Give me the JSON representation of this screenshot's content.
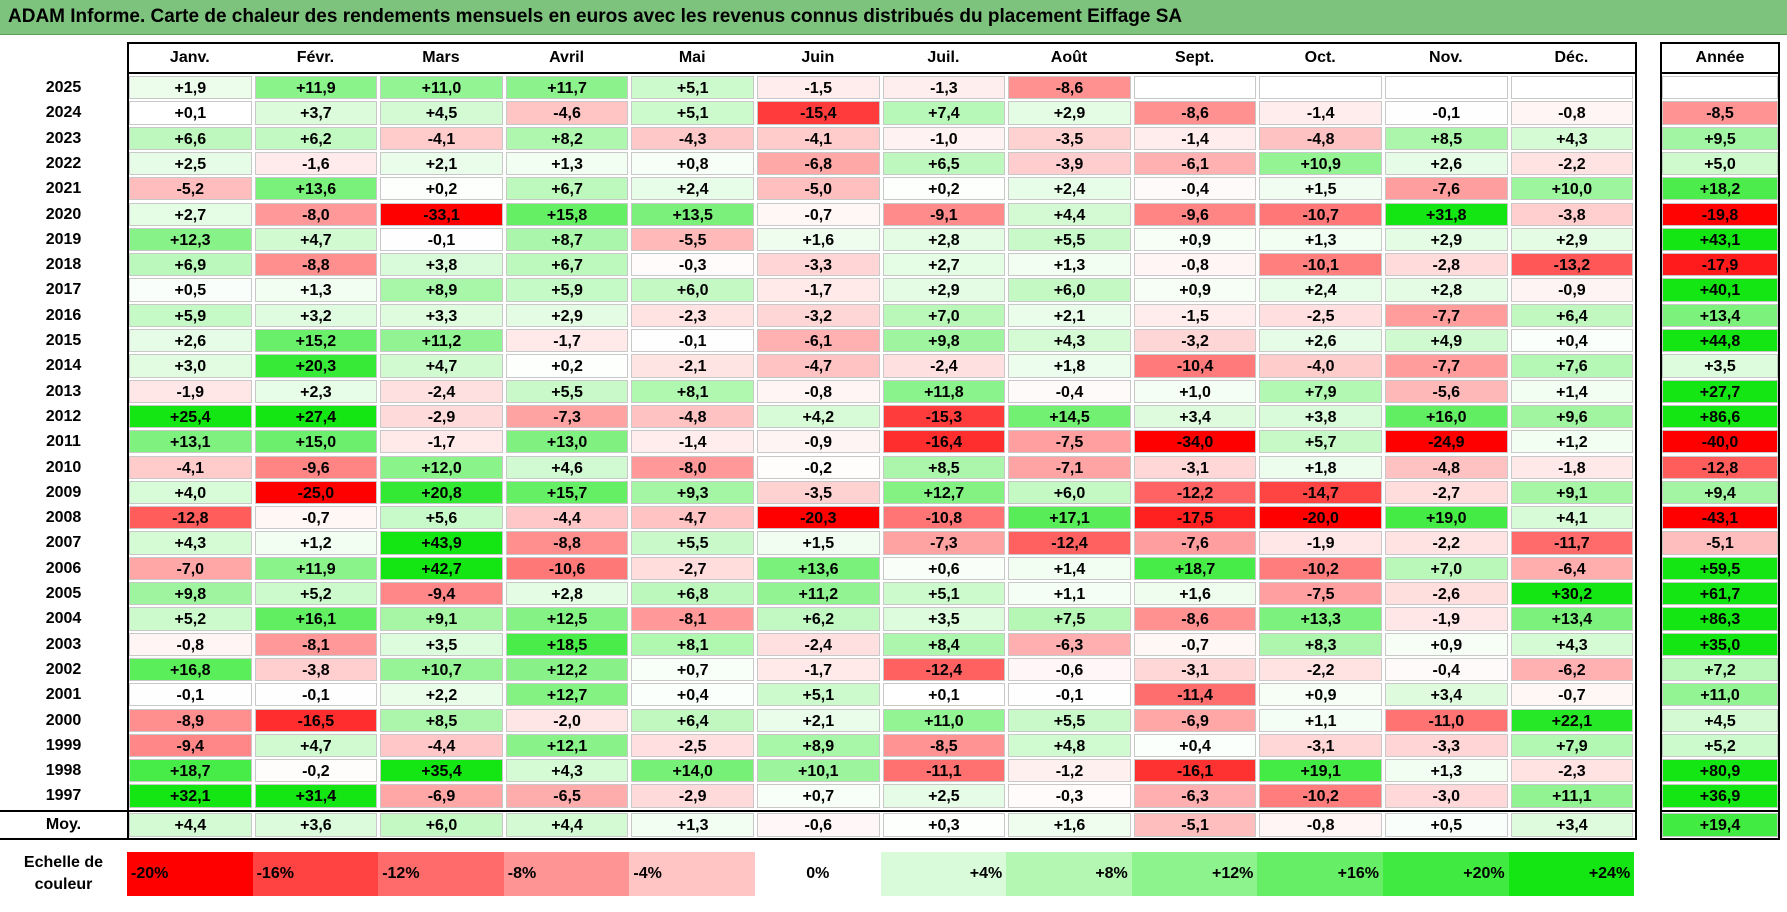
{
  "title": "ADAM Informe. Carte de chaleur des rendements mensuels en euros avec les revenus connus distribués du placement Eiffage SA",
  "chart_data": {
    "type": "heatmap",
    "title": "ADAM Informe. Carte de chaleur des rendements mensuels en euros avec les revenus connus distribués du placement Eiffage SA",
    "months": [
      "Janv.",
      "Févr.",
      "Mars",
      "Avril",
      "Mai",
      "Juin",
      "Juil.",
      "Août",
      "Sept.",
      "Oct.",
      "Nov.",
      "Déc."
    ],
    "year_header": "Année",
    "rows": [
      {
        "year": "2025",
        "m": [
          "+1,9",
          "+11,9",
          "+11,0",
          "+11,7",
          "+5,1",
          "-1,5",
          "-1,3",
          "-8,6",
          "",
          "",
          "",
          ""
        ],
        "y": ""
      },
      {
        "year": "2024",
        "m": [
          "+0,1",
          "+3,7",
          "+4,5",
          "-4,6",
          "+5,1",
          "-15,4",
          "+7,4",
          "+2,9",
          "-8,6",
          "-1,4",
          "-0,1",
          "-0,8"
        ],
        "y": "-8,5"
      },
      {
        "year": "2023",
        "m": [
          "+6,6",
          "+6,2",
          "-4,1",
          "+8,2",
          "-4,3",
          "-4,1",
          "-1,0",
          "-3,5",
          "-1,4",
          "-4,8",
          "+8,5",
          "+4,3"
        ],
        "y": "+9,5"
      },
      {
        "year": "2022",
        "m": [
          "+2,5",
          "-1,6",
          "+2,1",
          "+1,3",
          "+0,8",
          "-6,8",
          "+6,5",
          "-3,9",
          "-6,1",
          "+10,9",
          "+2,6",
          "-2,2"
        ],
        "y": "+5,0"
      },
      {
        "year": "2021",
        "m": [
          "-5,2",
          "+13,6",
          "+0,2",
          "+6,7",
          "+2,4",
          "-5,0",
          "+0,2",
          "+2,4",
          "-0,4",
          "+1,5",
          "-7,6",
          "+10,0"
        ],
        "y": "+18,2"
      },
      {
        "year": "2020",
        "m": [
          "+2,7",
          "-8,0",
          "-33,1",
          "+15,8",
          "+13,5",
          "-0,7",
          "-9,1",
          "+4,4",
          "-9,6",
          "-10,7",
          "+31,8",
          "-3,8"
        ],
        "y": "-19,8"
      },
      {
        "year": "2019",
        "m": [
          "+12,3",
          "+4,7",
          "-0,1",
          "+8,7",
          "-5,5",
          "+1,6",
          "+2,8",
          "+5,5",
          "+0,9",
          "+1,3",
          "+2,9",
          "+2,9"
        ],
        "y": "+43,1"
      },
      {
        "year": "2018",
        "m": [
          "+6,9",
          "-8,8",
          "+3,8",
          "+6,7",
          "-0,3",
          "-3,3",
          "+2,7",
          "+1,3",
          "-0,8",
          "-10,1",
          "-2,8",
          "-13,2"
        ],
        "y": "-17,9"
      },
      {
        "year": "2017",
        "m": [
          "+0,5",
          "+1,3",
          "+8,9",
          "+5,9",
          "+6,0",
          "-1,7",
          "+2,9",
          "+6,0",
          "+0,9",
          "+2,4",
          "+2,8",
          "-0,9"
        ],
        "y": "+40,1"
      },
      {
        "year": "2016",
        "m": [
          "+5,9",
          "+3,2",
          "+3,3",
          "+2,9",
          "-2,3",
          "-3,2",
          "+7,0",
          "+2,1",
          "-1,5",
          "-2,5",
          "-7,7",
          "+6,4"
        ],
        "y": "+13,4"
      },
      {
        "year": "2015",
        "m": [
          "+2,6",
          "+15,2",
          "+11,2",
          "-1,7",
          "-0,1",
          "-6,1",
          "+9,8",
          "+4,3",
          "-3,2",
          "+2,6",
          "+4,9",
          "+0,4"
        ],
        "y": "+44,8"
      },
      {
        "year": "2014",
        "m": [
          "+3,0",
          "+20,3",
          "+4,7",
          "+0,2",
          "-2,1",
          "-4,7",
          "-2,4",
          "+1,8",
          "-10,4",
          "-4,0",
          "-7,7",
          "+7,6"
        ],
        "y": "+3,5"
      },
      {
        "year": "2013",
        "m": [
          "-1,9",
          "+2,3",
          "-2,4",
          "+5,5",
          "+8,1",
          "-0,8",
          "+11,8",
          "-0,4",
          "+1,0",
          "+7,9",
          "-5,6",
          "+1,4"
        ],
        "y": "+27,7"
      },
      {
        "year": "2012",
        "m": [
          "+25,4",
          "+27,4",
          "-2,9",
          "-7,3",
          "-4,8",
          "+4,2",
          "-15,3",
          "+14,5",
          "+3,4",
          "+3,8",
          "+16,0",
          "+9,6"
        ],
        "y": "+86,6"
      },
      {
        "year": "2011",
        "m": [
          "+13,1",
          "+15,0",
          "-1,7",
          "+13,0",
          "-1,4",
          "-0,9",
          "-16,4",
          "-7,5",
          "-34,0",
          "+5,7",
          "-24,9",
          "+1,2"
        ],
        "y": "-40,0"
      },
      {
        "year": "2010",
        "m": [
          "-4,1",
          "-9,6",
          "+12,0",
          "+4,6",
          "-8,0",
          "-0,2",
          "+8,5",
          "-7,1",
          "-3,1",
          "+1,8",
          "-4,8",
          "-1,8"
        ],
        "y": "-12,8"
      },
      {
        "year": "2009",
        "m": [
          "+4,0",
          "-25,0",
          "+20,8",
          "+15,7",
          "+9,3",
          "-3,5",
          "+12,7",
          "+6,0",
          "-12,2",
          "-14,7",
          "-2,7",
          "+9,1"
        ],
        "y": "+9,4"
      },
      {
        "year": "2008",
        "m": [
          "-12,8",
          "-0,7",
          "+5,6",
          "-4,4",
          "-4,7",
          "-20,3",
          "-10,8",
          "+17,1",
          "-17,5",
          "-20,0",
          "+19,0",
          "+4,1"
        ],
        "y": "-43,1"
      },
      {
        "year": "2007",
        "m": [
          "+4,3",
          "+1,2",
          "+43,9",
          "-8,8",
          "+5,5",
          "+1,5",
          "-7,3",
          "-12,4",
          "-7,6",
          "-1,9",
          "-2,2",
          "-11,7"
        ],
        "y": "-5,1"
      },
      {
        "year": "2006",
        "m": [
          "-7,0",
          "+11,9",
          "+42,7",
          "-10,6",
          "-2,7",
          "+13,6",
          "+0,6",
          "+1,4",
          "+18,7",
          "-10,2",
          "+7,0",
          "-6,4"
        ],
        "y": "+59,5"
      },
      {
        "year": "2005",
        "m": [
          "+9,8",
          "+5,2",
          "-9,4",
          "+2,8",
          "+6,8",
          "+11,2",
          "+5,1",
          "+1,1",
          "+1,6",
          "-7,5",
          "-2,6",
          "+30,2"
        ],
        "y": "+61,7"
      },
      {
        "year": "2004",
        "m": [
          "+5,2",
          "+16,1",
          "+9,1",
          "+12,5",
          "-8,1",
          "+6,2",
          "+3,5",
          "+7,5",
          "-8,6",
          "+13,3",
          "-1,9",
          "+13,4"
        ],
        "y": "+86,3"
      },
      {
        "year": "2003",
        "m": [
          "-0,8",
          "-8,1",
          "+3,5",
          "+18,5",
          "+8,1",
          "-2,4",
          "+8,4",
          "-6,3",
          "-0,7",
          "+8,3",
          "+0,9",
          "+4,3"
        ],
        "y": "+35,0"
      },
      {
        "year": "2002",
        "m": [
          "+16,8",
          "-3,8",
          "+10,7",
          "+12,2",
          "+0,7",
          "-1,7",
          "-12,4",
          "-0,6",
          "-3,1",
          "-2,2",
          "-0,4",
          "-6,2"
        ],
        "y": "+7,2"
      },
      {
        "year": "2001",
        "m": [
          "-0,1",
          "-0,1",
          "+2,2",
          "+12,7",
          "+0,4",
          "+5,1",
          "+0,1",
          "-0,1",
          "-11,4",
          "+0,9",
          "+3,4",
          "-0,7"
        ],
        "y": "+11,0"
      },
      {
        "year": "2000",
        "m": [
          "-8,9",
          "-16,5",
          "+8,5",
          "-2,0",
          "+6,4",
          "+2,1",
          "+11,0",
          "+5,5",
          "-6,9",
          "+1,1",
          "-11,0",
          "+22,1"
        ],
        "y": "+4,5"
      },
      {
        "year": "1999",
        "m": [
          "-9,4",
          "+4,7",
          "-4,4",
          "+12,1",
          "-2,5",
          "+8,9",
          "-8,5",
          "+4,8",
          "+0,4",
          "-3,1",
          "-3,3",
          "+7,9"
        ],
        "y": "+5,2"
      },
      {
        "year": "1998",
        "m": [
          "+18,7",
          "-0,2",
          "+35,4",
          "+4,3",
          "+14,0",
          "+10,1",
          "-11,1",
          "-1,2",
          "-16,1",
          "+19,1",
          "+1,3",
          "-2,3"
        ],
        "y": "+80,9"
      },
      {
        "year": "1997",
        "m": [
          "+32,1",
          "+31,4",
          "-6,9",
          "-6,5",
          "-2,9",
          "+0,7",
          "+2,5",
          "-0,3",
          "-6,3",
          "-10,2",
          "-3,0",
          "+11,1"
        ],
        "y": "+36,9"
      }
    ],
    "average": {
      "label": "Moy.",
      "m": [
        "+4,4",
        "+3,6",
        "+6,0",
        "+4,4",
        "+1,3",
        "-0,6",
        "+0,3",
        "+1,6",
        "-5,1",
        "-0,8",
        "+0,5",
        "+3,4"
      ],
      "y": "+19,4"
    },
    "scale": {
      "label": "Echelle de couleur",
      "steps": [
        "-20%",
        "-16%",
        "-12%",
        "-8%",
        "-4%",
        "0%",
        "+4%",
        "+8%",
        "+12%",
        "+16%",
        "+20%",
        "+24%"
      ],
      "colors": [
        "#ff0000",
        "#ff4242",
        "#ff6b6b",
        "#ff9494",
        "#ffc4c4",
        "#ffffff",
        "#d9fbd9",
        "#b3f7b3",
        "#8df38d",
        "#66ef66",
        "#40ea40",
        "#14e614"
      ]
    }
  }
}
